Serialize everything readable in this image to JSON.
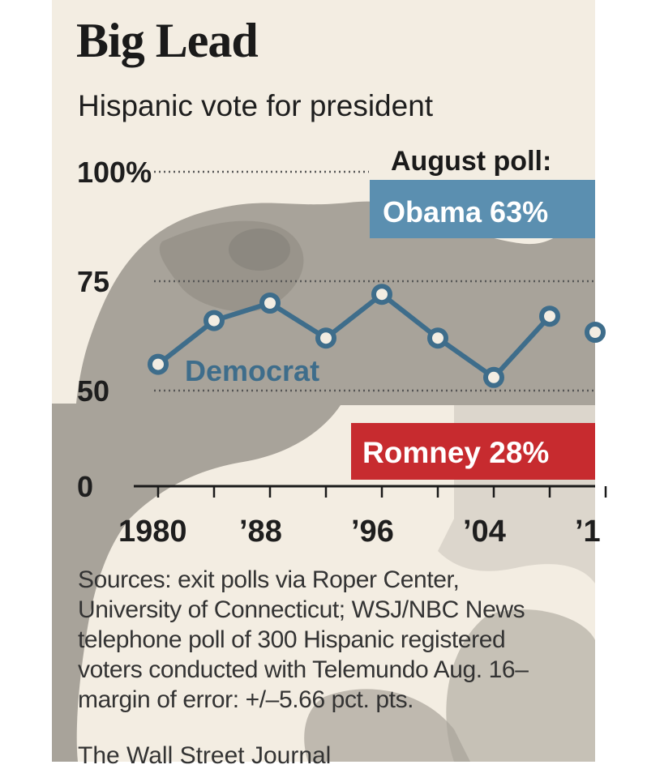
{
  "title": "Big Lead",
  "subtitle": "Hispanic vote for president",
  "callouts": {
    "header": "August poll:",
    "obama": "Obama 63%",
    "romney": "Romney 28%"
  },
  "sources": "Sources: exit polls via Roper Center,\nUniversity of Connecticut; WSJ/NBC News\ntelephone poll of 300 Hispanic registered\nvoters conducted with Telemundo Aug. 16–\nmargin of error: +/–5.66 pct. pts.",
  "credit": "The Wall Street Journal",
  "colors": {
    "background_paper": "#f3ede2",
    "blob_gray": "#a8a39a",
    "blob_dark": "#8d8880",
    "democrat": "#3e6d8b",
    "obama_box": "#5b8fb0",
    "romney_box": "#c72b2f"
  },
  "chart_data": {
    "type": "line",
    "title": "Big Lead",
    "subtitle": "Hispanic vote for president",
    "x": [
      1980,
      1984,
      1988,
      1992,
      1996,
      2000,
      2004,
      2008
    ],
    "series": [
      {
        "name": "Democrat",
        "values": [
          56,
          66,
          70,
          62,
          72,
          62,
          53,
          67
        ]
      }
    ],
    "extra_point": {
      "x": 2012,
      "value": 63
    },
    "y_ticks": [
      {
        "value": 0,
        "label": "0"
      },
      {
        "value": 50,
        "label": "50"
      },
      {
        "value": 75,
        "label": "75"
      },
      {
        "value": 100,
        "label": "100%"
      }
    ],
    "x_tick_labels": [
      {
        "x": 1980,
        "label": "1980"
      },
      {
        "x": 1988,
        "label": "’88"
      },
      {
        "x": 1996,
        "label": "’96"
      },
      {
        "x": 2004,
        "label": "’04"
      },
      {
        "x": 2012,
        "label": "’1"
      }
    ],
    "y_break": {
      "from": 0,
      "to": 50
    },
    "xlabel": "",
    "ylabel": ""
  }
}
